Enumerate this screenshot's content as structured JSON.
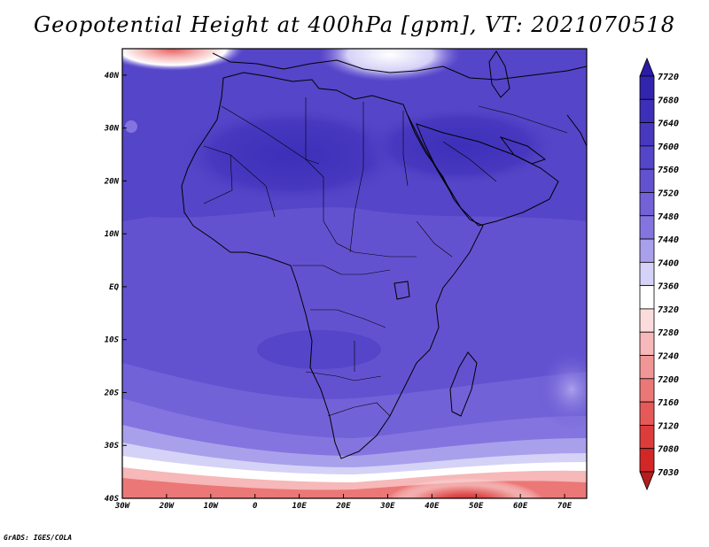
{
  "title": "Geopotential Height at 400hPa [gpm], VT: 2021070518",
  "credit": "GrADS: IGES/COLA",
  "map": {
    "lat_labels": [
      "40N",
      "30N",
      "20N",
      "10N",
      "EQ",
      "10S",
      "20S",
      "30S",
      "40S"
    ],
    "lon_labels": [
      "30W",
      "20W",
      "10W",
      "0",
      "10E",
      "20E",
      "30E",
      "40E",
      "50E",
      "60E",
      "70E"
    ],
    "lon_range": [
      -30,
      75
    ],
    "lat_range": [
      -40,
      45
    ]
  },
  "colorbar": {
    "levels": [
      "7720",
      "7680",
      "7640",
      "7600",
      "7560",
      "7520",
      "7480",
      "7440",
      "7400",
      "7360",
      "7320",
      "7280",
      "7240",
      "7200",
      "7160",
      "7120",
      "7080",
      "7030"
    ],
    "colors": [
      "#2b1ba6",
      "#3324ad",
      "#3d2fb8",
      "#4838c0",
      "#5545c8",
      "#6352d0",
      "#7262d8",
      "#8474df",
      "#a9a0ec",
      "#d5d2f7",
      "#ffffff",
      "#fbdcdc",
      "#f6b8b8",
      "#f19696",
      "#ec7777",
      "#e65959",
      "#dd3c3c",
      "#d32727",
      "#b41d1d"
    ]
  }
}
